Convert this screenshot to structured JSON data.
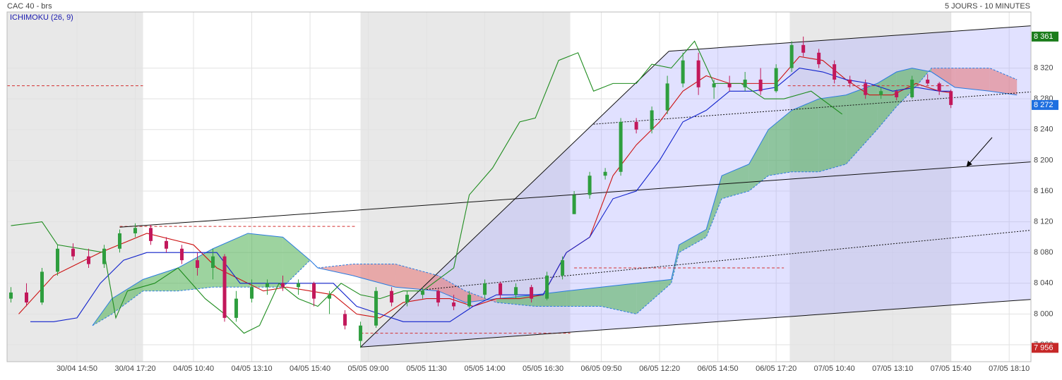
{
  "chart_data": {
    "type": "candlestick",
    "title": "CAC 40 - brs",
    "period": "5 JOURS - 10 MINUTES",
    "indicator": "ICHIMOKU (26, 9)",
    "xlim": [
      0,
      263.6
    ],
    "ylim": [
      7938,
      8393
    ],
    "grid": true,
    "xticks": [
      {
        "value": 18,
        "label": "30/04 14:50"
      },
      {
        "value": 33,
        "label": "30/04 17:20"
      },
      {
        "value": 48,
        "label": "04/05 10:40"
      },
      {
        "value": 63,
        "label": "04/05 13:10"
      },
      {
        "value": 78,
        "label": "04/05 15:40"
      },
      {
        "value": 93,
        "label": "05/05 09:00"
      },
      {
        "value": 108,
        "label": "05/05 11:30"
      },
      {
        "value": 123,
        "label": "05/05 14:00"
      },
      {
        "value": 138,
        "label": "05/05 16:30"
      },
      {
        "value": 153,
        "label": "06/05 09:50"
      },
      {
        "value": 168,
        "label": "06/05 12:20"
      },
      {
        "value": 183,
        "label": "06/05 14:50"
      },
      {
        "value": 198,
        "label": "06/05 17:20"
      },
      {
        "value": 213,
        "label": "07/05 10:40"
      },
      {
        "value": 228,
        "label": "07/05 13:10"
      },
      {
        "value": 243,
        "label": "07/05 15:40"
      },
      {
        "value": 258,
        "label": "07/05 18:10"
      }
    ],
    "yticks": [
      {
        "value": 7960,
        "label": "7 960"
      },
      {
        "value": 8000,
        "label": "8 000"
      },
      {
        "value": 8040,
        "label": "8 040"
      },
      {
        "value": 8080,
        "label": "8 080"
      },
      {
        "value": 8120,
        "label": "8 120"
      },
      {
        "value": 8160,
        "label": "8 160"
      },
      {
        "value": 8200,
        "label": "8 200"
      },
      {
        "value": 8240,
        "label": "8 240"
      },
      {
        "value": 8280,
        "label": "8 280"
      },
      {
        "value": 8320,
        "label": "8 320"
      }
    ],
    "session_shading": {
      "start": [
        0,
        91,
        201.5
      ],
      "end": [
        35,
        145,
        243
      ],
      "color": "#e8e8e8"
    },
    "up_color": "#2e9e3e",
    "down_color": "#c2185b",
    "candles": {
      "x": [
        1,
        5,
        9,
        13,
        17,
        21,
        25,
        29,
        33,
        37,
        41,
        45,
        49,
        53,
        56,
        59,
        63,
        67,
        71,
        75,
        79,
        83,
        87,
        91,
        95,
        99,
        103,
        107,
        111,
        115,
        119,
        123,
        127,
        131,
        135,
        139,
        143,
        146,
        150,
        154,
        158,
        162,
        166,
        170,
        174,
        178,
        182,
        186,
        190,
        194,
        198,
        202,
        205,
        209,
        213,
        217,
        221,
        225,
        229,
        233,
        237,
        240,
        243
      ],
      "open": [
        8020,
        8028,
        8015,
        8055,
        8085,
        8075,
        8065,
        8085,
        8105,
        8112,
        8095,
        8085,
        8070,
        8060,
        8075,
        7995,
        8020,
        8035,
        8040,
        8035,
        8040,
        8020,
        8000,
        7965,
        7985,
        8030,
        8015,
        8025,
        8030,
        8015,
        8010,
        8025,
        8040,
        8025,
        8035,
        8020,
        8050,
        8130,
        8155,
        8180,
        8185,
        8250,
        8240,
        8265,
        8300,
        8330,
        8295,
        8300,
        8295,
        8305,
        8290,
        8320,
        8350,
        8340,
        8325,
        8305,
        8300,
        8285,
        8290,
        8282,
        8305,
        8300,
        8290
      ],
      "high": [
        8035,
        8040,
        8060,
        8090,
        8092,
        8085,
        8090,
        8110,
        8118,
        8116,
        8100,
        8090,
        8080,
        8085,
        8078,
        8030,
        8045,
        8045,
        8050,
        8045,
        8042,
        8030,
        8005,
        7990,
        8035,
        8035,
        8030,
        8035,
        8032,
        8025,
        8030,
        8045,
        8042,
        8040,
        8038,
        8055,
        8075,
        8160,
        8185,
        8190,
        8255,
        8255,
        8270,
        8310,
        8340,
        8340,
        8305,
        8310,
        8315,
        8320,
        8325,
        8355,
        8361,
        8345,
        8330,
        8310,
        8305,
        8295,
        8292,
        8310,
        8312,
        8302,
        8292
      ],
      "low": [
        8015,
        8010,
        8012,
        8050,
        8070,
        8060,
        8060,
        8080,
        8100,
        8090,
        8080,
        8065,
        8050,
        8045,
        7990,
        7990,
        8015,
        8025,
        8030,
        8025,
        8010,
        8000,
        7980,
        7956,
        7982,
        8010,
        8010,
        8020,
        8010,
        8005,
        8008,
        8020,
        8020,
        8020,
        8015,
        8018,
        8045,
        8130,
        8150,
        8175,
        8180,
        8235,
        8235,
        8260,
        8295,
        8285,
        8280,
        8290,
        8290,
        8285,
        8288,
        8315,
        8335,
        8320,
        8300,
        8295,
        8280,
        8280,
        8278,
        8280,
        8298,
        8285,
        8268
      ],
      "close": [
        8028,
        8015,
        8055,
        8085,
        8075,
        8065,
        8085,
        8105,
        8112,
        8095,
        8085,
        8070,
        8060,
        8075,
        7995,
        8020,
        8035,
        8040,
        8035,
        8040,
        8020,
        8025,
        7985,
        7985,
        8030,
        8015,
        8025,
        8030,
        8015,
        8010,
        8025,
        8040,
        8025,
        8035,
        8020,
        8050,
        8070,
        8155,
        8180,
        8185,
        8250,
        8240,
        8265,
        8300,
        8330,
        8295,
        8300,
        8295,
        8305,
        8290,
        8320,
        8350,
        8340,
        8325,
        8305,
        8300,
        8285,
        8290,
        8282,
        8305,
        8300,
        8290,
        8272
      ]
    },
    "series": [
      {
        "name": "tenkan",
        "color": "#cc1111",
        "dash": "",
        "x": [
          3,
          12,
          24,
          36,
          48,
          54,
          66,
          72,
          78,
          84,
          90,
          96,
          102,
          108,
          114,
          120,
          126,
          132,
          138,
          144,
          150,
          156,
          162,
          168,
          174,
          180,
          186,
          192,
          198,
          204,
          210,
          216,
          222,
          228,
          234,
          240,
          243
        ],
        "values": [
          8000,
          8050,
          8080,
          8105,
          8090,
          8060,
          8030,
          8035,
          8030,
          8025,
          8000,
          7995,
          8015,
          8020,
          8020,
          8010,
          8020,
          8020,
          8025,
          8080,
          8100,
          8180,
          8220,
          8250,
          8290,
          8310,
          8300,
          8300,
          8300,
          8335,
          8330,
          8305,
          8285,
          8285,
          8300,
          8290,
          8288
        ]
      },
      {
        "name": "kijun",
        "color": "#1122cc",
        "dash": "",
        "x": [
          6,
          12,
          18,
          24,
          30,
          36,
          48,
          54,
          60,
          66,
          72,
          78,
          84,
          90,
          96,
          102,
          108,
          114,
          120,
          126,
          132,
          138,
          144,
          150,
          156,
          162,
          168,
          174,
          180,
          186,
          192,
          198,
          204,
          210,
          216,
          222,
          228,
          234,
          240,
          243
        ],
        "values": [
          7990,
          7990,
          7995,
          8040,
          8070,
          8080,
          8080,
          8080,
          8040,
          8040,
          8040,
          8040,
          8040,
          8010,
          8000,
          7990,
          7990,
          7990,
          8010,
          8025,
          8025,
          8025,
          8080,
          8100,
          8150,
          8160,
          8200,
          8250,
          8265,
          8290,
          8290,
          8295,
          8320,
          8315,
          8305,
          8300,
          8290,
          8295,
          8290,
          8290
        ]
      },
      {
        "name": "chikou",
        "color": "#1e8c1e",
        "dash": "",
        "x": [
          1,
          9,
          13,
          25,
          28,
          31,
          38,
          44,
          51,
          56,
          61,
          65,
          70,
          75,
          80,
          86,
          91,
          96,
          102,
          107,
          115,
          119,
          125,
          132,
          136,
          142,
          147,
          151,
          156,
          162,
          166,
          171,
          177,
          182,
          189,
          195,
          200,
          207,
          215
        ],
        "values": [
          8115,
          8120,
          8090,
          8080,
          7995,
          8030,
          8040,
          8060,
          8020,
          8000,
          7975,
          7985,
          8040,
          8020,
          8010,
          8040,
          8025,
          8020,
          8030,
          8030,
          8060,
          8155,
          8190,
          8250,
          8255,
          8330,
          8340,
          8290,
          8300,
          8300,
          8325,
          8320,
          8355,
          8300,
          8300,
          8280,
          8280,
          8290,
          8260
        ]
      }
    ],
    "cloud": {
      "x": [
        22,
        27,
        35,
        44,
        53,
        62,
        71,
        78,
        80,
        89,
        100,
        111,
        118,
        126,
        136,
        144,
        153,
        162,
        171,
        173,
        180,
        184,
        191,
        196,
        202,
        209,
        216,
        224,
        229,
        233,
        238,
        244,
        253,
        260
      ],
      "senkou_a": [
        7985,
        8020,
        8045,
        8060,
        8085,
        8105,
        8100,
        8070,
        8060,
        8050,
        8035,
        8030,
        8015,
        8020,
        8025,
        8030,
        8035,
        8040,
        8045,
        8090,
        8110,
        8180,
        8195,
        8240,
        8265,
        8280,
        8285,
        8300,
        8315,
        8320,
        8315,
        8295,
        8290,
        8285
      ],
      "senkou_b": [
        7985,
        8000,
        8030,
        8030,
        8035,
        8035,
        8035,
        8070,
        8060,
        8065,
        8065,
        8050,
        8030,
        8015,
        8010,
        8010,
        8010,
        8000,
        8040,
        8080,
        8100,
        8150,
        8160,
        8180,
        8185,
        8185,
        8195,
        8240,
        8270,
        8290,
        8320,
        8320,
        8320,
        8305
      ],
      "bull_color": "#4caf50",
      "bear_color": "#e57373"
    },
    "dashed_levels": {
      "start": [
        0,
        29,
        146,
        91,
        201
      ],
      "end": [
        35,
        90,
        200,
        145,
        243
      ],
      "values": [
        8297,
        8114,
        8060,
        7975,
        8297
      ],
      "color": "#d32f2f"
    },
    "trend_lines": {
      "x1": [
        91,
        170.4,
        91,
        29,
        151,
        108
      ],
      "y1": [
        7957,
        8342,
        7957,
        8113,
        8247,
        8032
      ],
      "x2": [
        170.4,
        263.6,
        263.6,
        263.6,
        263.6,
        263.6
      ],
      "y2": [
        8342,
        8375,
        8019,
        8198,
        8289,
        8109
      ],
      "style": [
        "solid",
        "solid",
        "solid",
        "solid",
        "dotted",
        "dotted"
      ]
    },
    "channel_fill": "rgba(170,170,255,0.35)",
    "price_markers": [
      {
        "value": 8361,
        "label": "8 361",
        "color": "#1b7d1b"
      },
      {
        "value": 8272,
        "label": "8 272",
        "color": "#1e6fe0"
      },
      {
        "value": 7956,
        "label": "7 956",
        "color": "#c62828"
      }
    ]
  }
}
